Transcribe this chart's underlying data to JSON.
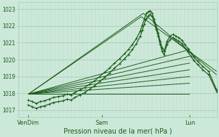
{
  "xlabel": "Pression niveau de la mer( hPa )",
  "bg_color": "#cce8d8",
  "grid_color_h": "#a8c8b8",
  "grid_color_v": "#c0ddd0",
  "line_color": "#1a5c1a",
  "yticks": [
    1017,
    1018,
    1019,
    1020,
    1021,
    1022,
    1023
  ],
  "ylim": [
    1016.6,
    1023.4
  ],
  "xtick_labels": [
    "VenDim",
    "Sam",
    "Lun"
  ],
  "xtick_positions": [
    0.05,
    0.42,
    0.865
  ],
  "xlim": [
    0.0,
    1.0
  ],
  "n_vgrid": 50,
  "fan_lines": [
    {
      "x": [
        0.05,
        0.865
      ],
      "y": [
        1017.95,
        1017.95
      ]
    },
    {
      "x": [
        0.05,
        0.865
      ],
      "y": [
        1017.95,
        1018.6
      ]
    },
    {
      "x": [
        0.05,
        0.865
      ],
      "y": [
        1017.95,
        1019.0
      ]
    },
    {
      "x": [
        0.05,
        0.865
      ],
      "y": [
        1017.95,
        1019.4
      ]
    },
    {
      "x": [
        0.05,
        0.865
      ],
      "y": [
        1017.95,
        1019.8
      ]
    },
    {
      "x": [
        0.05,
        0.865
      ],
      "y": [
        1017.95,
        1020.2
      ]
    },
    {
      "x": [
        0.05,
        0.865
      ],
      "y": [
        1017.95,
        1020.6
      ]
    },
    {
      "x": [
        0.05,
        0.62,
        1.0
      ],
      "y": [
        1017.95,
        1022.55,
        1019.3
      ]
    },
    {
      "x": [
        0.05,
        0.63,
        1.0
      ],
      "y": [
        1017.95,
        1022.75,
        1019.1
      ]
    }
  ],
  "main_line1_x": [
    0.05,
    0.07,
    0.09,
    0.11,
    0.13,
    0.155,
    0.175,
    0.2,
    0.225,
    0.245,
    0.265,
    0.285,
    0.31,
    0.335,
    0.36,
    0.385,
    0.41,
    0.435,
    0.46,
    0.485,
    0.51,
    0.535,
    0.555,
    0.575,
    0.595,
    0.615,
    0.625,
    0.635,
    0.645,
    0.655,
    0.665,
    0.675,
    0.685,
    0.695,
    0.705,
    0.715,
    0.725,
    0.735,
    0.75,
    0.765,
    0.78,
    0.795,
    0.81,
    0.825,
    0.84,
    0.855,
    0.87,
    0.885,
    0.905,
    0.93,
    0.96,
    1.0
  ],
  "main_line1_y": [
    1017.3,
    1017.2,
    1017.1,
    1017.2,
    1017.25,
    1017.35,
    1017.45,
    1017.5,
    1017.55,
    1017.65,
    1017.6,
    1017.75,
    1017.9,
    1018.05,
    1018.25,
    1018.45,
    1018.7,
    1018.95,
    1019.2,
    1019.5,
    1019.75,
    1020.05,
    1020.3,
    1020.6,
    1020.95,
    1021.4,
    1021.75,
    1022.1,
    1022.45,
    1022.6,
    1022.7,
    1022.55,
    1022.2,
    1021.8,
    1021.4,
    1020.9,
    1020.5,
    1020.3,
    1020.9,
    1021.2,
    1021.3,
    1021.2,
    1021.1,
    1020.95,
    1020.7,
    1020.45,
    1020.2,
    1019.95,
    1019.7,
    1019.4,
    1019.1,
    1018.1
  ],
  "main_line2_x": [
    0.05,
    0.07,
    0.09,
    0.11,
    0.13,
    0.155,
    0.175,
    0.2,
    0.225,
    0.245,
    0.265,
    0.285,
    0.31,
    0.335,
    0.36,
    0.385,
    0.41,
    0.435,
    0.46,
    0.485,
    0.51,
    0.535,
    0.555,
    0.575,
    0.595,
    0.615,
    0.625,
    0.635,
    0.645,
    0.655,
    0.665,
    0.675,
    0.685,
    0.695,
    0.705,
    0.715,
    0.725,
    0.735,
    0.75,
    0.765,
    0.78,
    0.795,
    0.81,
    0.825,
    0.84,
    0.855,
    0.87,
    0.885,
    0.905,
    0.93,
    0.96,
    1.0
  ],
  "main_line2_y": [
    1017.6,
    1017.5,
    1017.4,
    1017.5,
    1017.55,
    1017.65,
    1017.75,
    1017.8,
    1017.85,
    1017.95,
    1017.9,
    1018.05,
    1018.2,
    1018.35,
    1018.55,
    1018.75,
    1019.0,
    1019.25,
    1019.5,
    1019.8,
    1020.05,
    1020.35,
    1020.6,
    1020.9,
    1021.25,
    1021.7,
    1022.05,
    1022.4,
    1022.75,
    1022.85,
    1022.9,
    1022.75,
    1022.4,
    1022.0,
    1021.6,
    1021.1,
    1020.7,
    1020.5,
    1021.1,
    1021.4,
    1021.5,
    1021.4,
    1021.3,
    1021.15,
    1020.9,
    1020.65,
    1020.4,
    1020.15,
    1019.9,
    1019.6,
    1019.3,
    1018.2
  ],
  "ylabel_fontsize": 5.5,
  "xlabel_fontsize": 7.0,
  "xtick_fontsize": 6.0
}
